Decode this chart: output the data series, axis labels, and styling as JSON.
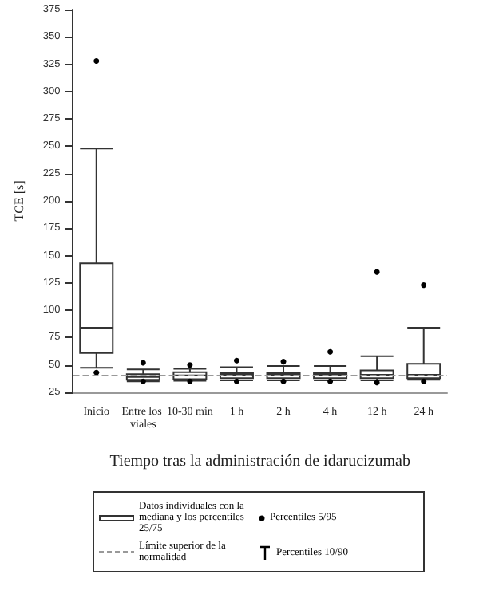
{
  "chart_data": {
    "type": "box",
    "xlabel": "Tiempo tras la administración de idarucizumab",
    "ylabel": "TCE [s]",
    "categories": [
      "Inicio",
      "Entre los viales",
      "10-30 min",
      "1 h",
      "2 h",
      "4 h",
      "12 h",
      "24 h"
    ],
    "ylim": [
      25,
      375
    ],
    "yticks": [
      25,
      50,
      75,
      100,
      125,
      150,
      175,
      200,
      225,
      250,
      275,
      300,
      325,
      350,
      375
    ],
    "grid": false,
    "legend": "bottom",
    "series": [
      {
        "name": "Datos individuales con la mediana y los percentiles 25/75",
        "color": "#333333",
        "boxes": [
          {
            "low": 47.5,
            "q1": 61,
            "median": 84,
            "q3": 143,
            "high": 248
          },
          {
            "low": 35,
            "q1": 36.5,
            "median": 39,
            "q3": 41.5,
            "high": 46
          },
          {
            "low": 35.5,
            "q1": 37,
            "median": 40.5,
            "q3": 43.5,
            "high": 46.5
          },
          {
            "low": 36,
            "q1": 38,
            "median": 41,
            "q3": 42.5,
            "high": 48
          },
          {
            "low": 36,
            "q1": 38,
            "median": 41,
            "q3": 42.5,
            "high": 49
          },
          {
            "low": 36,
            "q1": 38,
            "median": 41,
            "q3": 42.5,
            "high": 49
          },
          {
            "low": 36,
            "q1": 38,
            "median": 41,
            "q3": 45,
            "high": 58
          },
          {
            "low": 36.5,
            "q1": 38,
            "median": 41,
            "q3": 51,
            "high": 84
          }
        ]
      },
      {
        "name": "Percentiles 5/95",
        "type": "scatter",
        "color": "#000000",
        "marker": "circle",
        "x": [
          "Inicio",
          "Inicio",
          "Entre los viales",
          "Entre los viales",
          "10-30 min",
          "10-30 min",
          "1 h",
          "1 h",
          "2 h",
          "2 h",
          "4 h",
          "4 h",
          "12 h",
          "12 h",
          "24 h",
          "24 h"
        ],
        "values": [
          328,
          43,
          52,
          35,
          50,
          35,
          54,
          35,
          53,
          35,
          62,
          35,
          135,
          34,
          123,
          35
        ]
      }
    ],
    "ref_lines": [
      {
        "axis": "y",
        "value": 41,
        "label": "Límite superior de la normalidad",
        "color": "#999999",
        "line_style": "dashed"
      }
    ],
    "annotations": [
      "Percentiles 10/90"
    ]
  }
}
